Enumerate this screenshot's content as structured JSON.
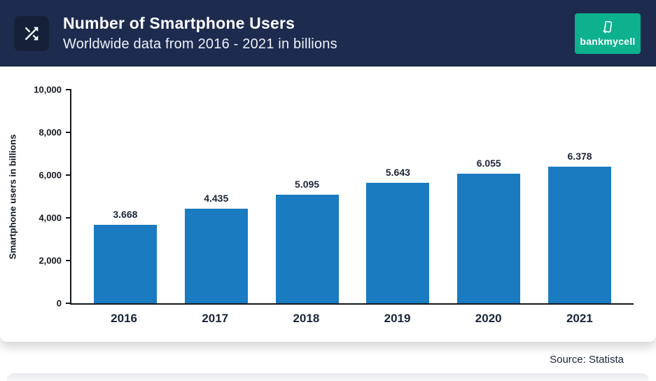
{
  "header": {
    "title": "Number of Smartphone Users",
    "subtitle": "Worldwide data from 2016 - 2021 in billions",
    "logo_text": "bankmycell"
  },
  "footer": {
    "source": "Source: Statista"
  },
  "colors": {
    "header_bg": "#1d2b4f",
    "icon_box_bg": "#152138",
    "logo_bg": "#0db18d",
    "bar": "#1a7bc0",
    "text_dark": "#1c2638"
  },
  "chart_data": {
    "type": "bar",
    "title": "Number of Smartphone Users",
    "subtitle": "Worldwide data from 2016 - 2021 in billions",
    "categories": [
      "2016",
      "2017",
      "2018",
      "2019",
      "2020",
      "2021"
    ],
    "values": [
      3.668,
      4.435,
      5.095,
      5.643,
      6.055,
      6.378
    ],
    "bar_labels": [
      "3.668",
      "4.435",
      "5.095",
      "5.643",
      "6.055",
      "6.378"
    ],
    "axis_values": [
      3668,
      4435,
      5095,
      5643,
      6055,
      6378
    ],
    "ylabel": "Smartphone users in billions",
    "xlabel": "",
    "ylim": [
      0,
      10000
    ],
    "yticks": [
      "0",
      "2,000",
      "4,000",
      "6,000",
      "8,000",
      "10,000"
    ],
    "grid": false,
    "legend": "none",
    "bar_color": "#1a7bc0",
    "source": "Source: Statista"
  }
}
